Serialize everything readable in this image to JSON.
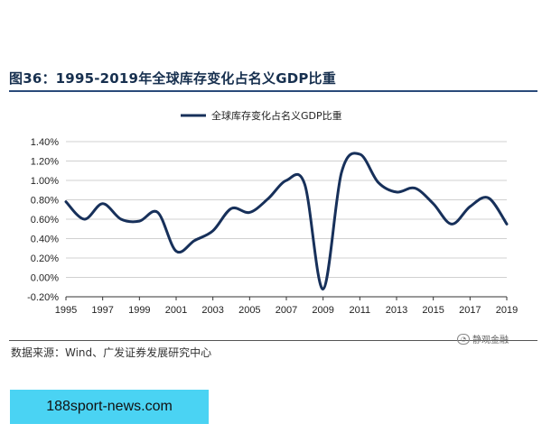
{
  "figure": {
    "title": "图36：1995-2019年全球库存变化占名义GDP比重",
    "source": "数据来源：Wind、广发证券发展研究中心",
    "watermark": "静观金融",
    "url_banner": "188sport-news.com"
  },
  "chart_data": {
    "type": "line",
    "title": "",
    "xlabel": "",
    "ylabel": "",
    "x_ticks": [
      "1995",
      "1997",
      "1999",
      "2001",
      "2003",
      "2005",
      "2007",
      "2009",
      "2011",
      "2013",
      "2015",
      "2017",
      "2019"
    ],
    "y_ticks": [
      "1.40%",
      "1.20%",
      "1.00%",
      "0.80%",
      "0.60%",
      "0.40%",
      "0.20%",
      "0.00%",
      "-0.20%"
    ],
    "ylim": [
      -0.2,
      1.4
    ],
    "xlim": [
      1995,
      2019
    ],
    "grid": "horizontal",
    "legend_position": "top-center",
    "series": [
      {
        "name": "全球库存变化占名义GDP比重",
        "color": "#17305a",
        "x": [
          1995,
          1996,
          1997,
          1998,
          1999,
          2000,
          2001,
          2002,
          2003,
          2004,
          2005,
          2006,
          2007,
          2008,
          2009,
          2010,
          2011,
          2012,
          2013,
          2014,
          2015,
          2016,
          2017,
          2018,
          2019
        ],
        "values": [
          0.78,
          0.6,
          0.76,
          0.6,
          0.58,
          0.67,
          0.27,
          0.38,
          0.48,
          0.71,
          0.67,
          0.81,
          1.0,
          0.96,
          -0.12,
          1.08,
          1.27,
          0.98,
          0.88,
          0.92,
          0.76,
          0.55,
          0.73,
          0.82,
          0.55
        ]
      }
    ]
  }
}
